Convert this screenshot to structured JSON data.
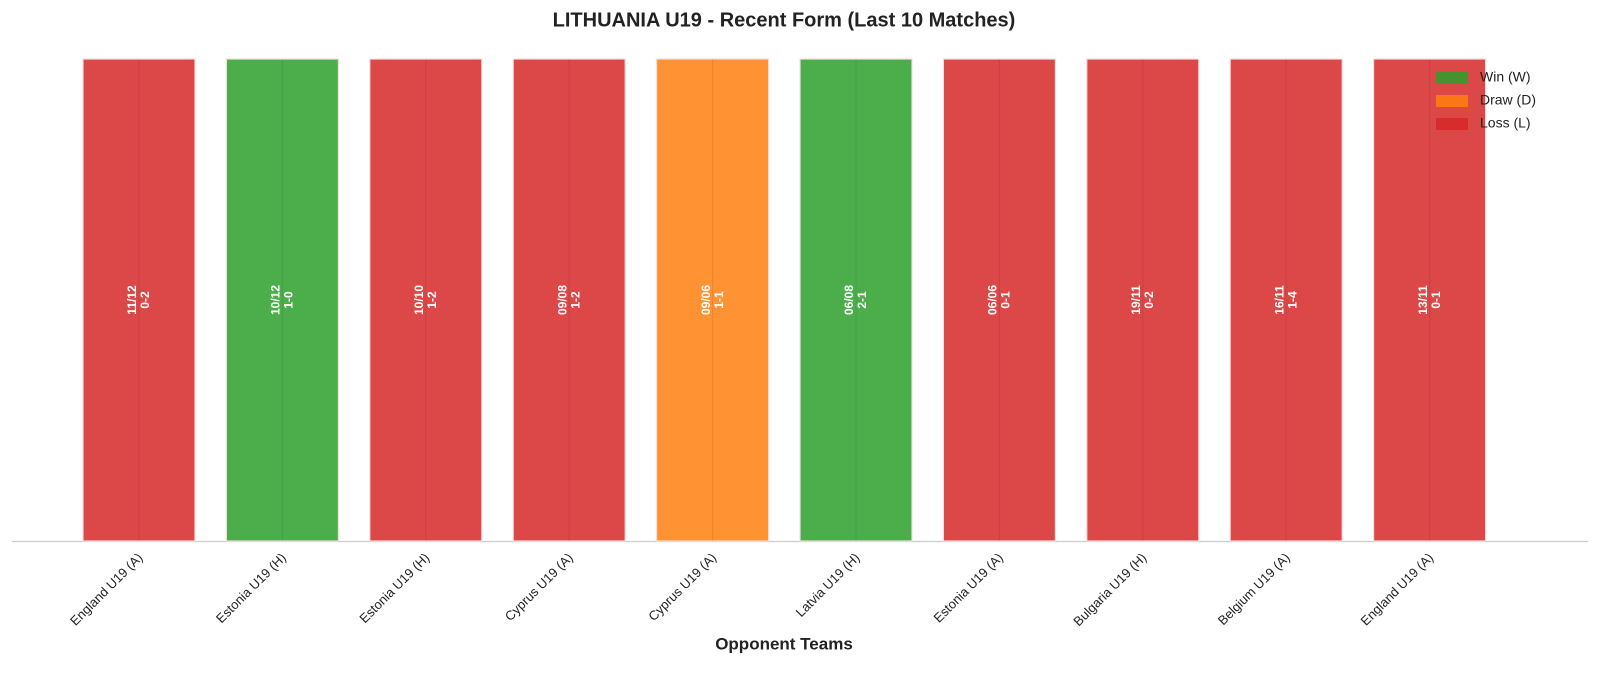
{
  "chart_data": {
    "type": "bar",
    "title": "LITHUANIA U19 - Recent Form (Last 10 Matches)",
    "x_label": "Opponent Teams",
    "categories": [
      "England U19 (A)",
      "Estonia U19 (H)",
      "Estonia U19 (H)",
      "Cyprus U19 (A)",
      "Cyprus U19 (A)",
      "Latvia U19 (H)",
      "Estonia U19 (A)",
      "Bulgaria U19 (H)",
      "Belgium U19 (A)",
      "England U19 (A)"
    ],
    "dates": [
      "11/12",
      "10/12",
      "10/10",
      "09/08",
      "09/06",
      "06/08",
      "06/06",
      "19/11",
      "16/11",
      "13/11"
    ],
    "scores": [
      "0-2",
      "1-0",
      "1-2",
      "1-2",
      "1-1",
      "2-1",
      "0-1",
      "0-2",
      "1-4",
      "0-1"
    ],
    "series": [
      {
        "name": "Win (W)",
        "color": "#2ca02c",
        "values": [
          null,
          1,
          null,
          null,
          null,
          1,
          null,
          null,
          null,
          null
        ]
      },
      {
        "name": "Draw (D)",
        "color": "#ff7f0e",
        "values": [
          null,
          null,
          null,
          null,
          1,
          null,
          null,
          null,
          null,
          null
        ]
      },
      {
        "name": "Loss (L)",
        "color": "#d62728",
        "values": [
          1,
          null,
          1,
          1,
          null,
          null,
          1,
          1,
          1,
          1
        ]
      }
    ],
    "legend": "upper right"
  }
}
